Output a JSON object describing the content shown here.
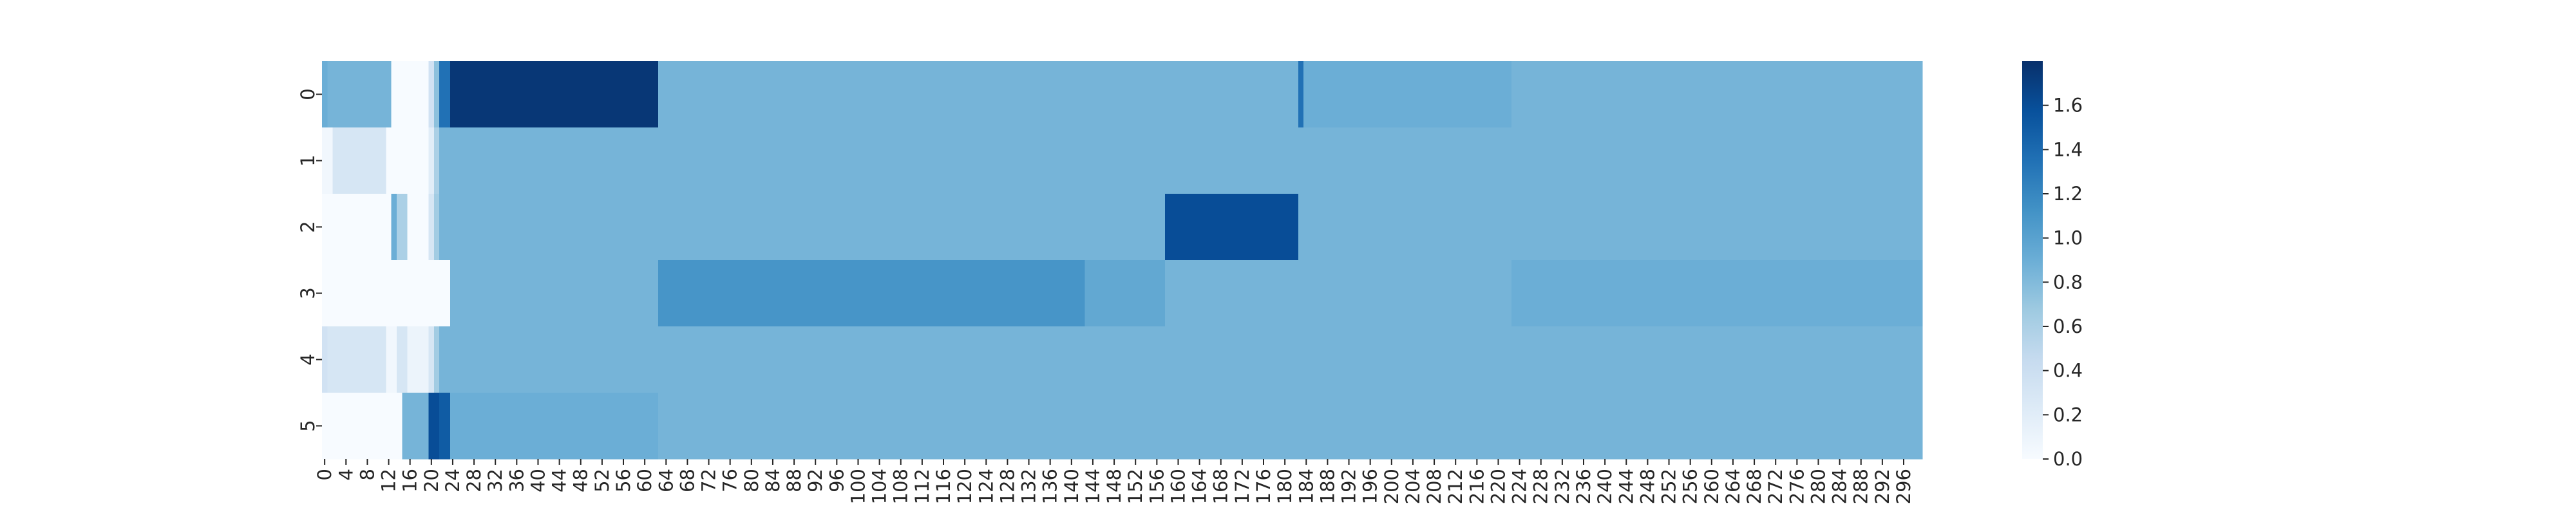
{
  "chart_data": {
    "type": "heatmap",
    "title": "",
    "xlabel": "",
    "ylabel": "",
    "colormap": "Blues",
    "vmin": 0.0,
    "vmax": 1.8,
    "rows": [
      "0",
      "1",
      "2",
      "3",
      "4",
      "5"
    ],
    "n_columns": 300,
    "x_tick_labels": [
      "0",
      "4",
      "8",
      "12",
      "16",
      "20",
      "24",
      "28",
      "32",
      "36",
      "40",
      "44",
      "48",
      "52",
      "56",
      "60",
      "64",
      "68",
      "72",
      "76",
      "80",
      "84",
      "88",
      "92",
      "96",
      "100",
      "104",
      "108",
      "112",
      "116",
      "120",
      "124",
      "128",
      "132",
      "136",
      "140",
      "144",
      "148",
      "152",
      "156",
      "160",
      "164",
      "168",
      "172",
      "176",
      "180",
      "184",
      "188",
      "192",
      "196",
      "200",
      "204",
      "208",
      "212",
      "216",
      "220",
      "224",
      "228",
      "232",
      "236",
      "240",
      "244",
      "248",
      "252",
      "256",
      "260",
      "264",
      "268",
      "272",
      "276",
      "280",
      "284",
      "288",
      "292",
      "296"
    ],
    "colorbar_ticks": [
      "0.0",
      "0.2",
      "0.4",
      "0.6",
      "0.8",
      "1.0",
      "1.2",
      "1.4",
      "1.6"
    ],
    "colorbar_tick_values": [
      0.0,
      0.2,
      0.4,
      0.6,
      0.8,
      1.0,
      1.2,
      1.4,
      1.6
    ],
    "value_segments": [
      [
        [
          0,
          1,
          0.9
        ],
        [
          1,
          13,
          0.85
        ],
        [
          13,
          20,
          0.0
        ],
        [
          20,
          21,
          0.35
        ],
        [
          21,
          22,
          0.75
        ],
        [
          22,
          24,
          1.35
        ],
        [
          24,
          63,
          1.75
        ],
        [
          63,
          183,
          0.85
        ],
        [
          183,
          184,
          1.35
        ],
        [
          184,
          223,
          0.9
        ],
        [
          223,
          300,
          0.85
        ]
      ],
      [
        [
          0,
          2,
          0.05
        ],
        [
          2,
          12,
          0.3
        ],
        [
          12,
          20,
          0.0
        ],
        [
          20,
          21,
          0.2
        ],
        [
          21,
          22,
          0.6
        ],
        [
          22,
          300,
          0.85
        ]
      ],
      [
        [
          0,
          13,
          0.0
        ],
        [
          13,
          14,
          0.9
        ],
        [
          14,
          16,
          0.6
        ],
        [
          16,
          20,
          0.0
        ],
        [
          20,
          21,
          0.3
        ],
        [
          21,
          22,
          0.65
        ],
        [
          22,
          158,
          0.85
        ],
        [
          158,
          183,
          1.6
        ],
        [
          183,
          300,
          0.85
        ]
      ],
      [
        [
          0,
          24,
          0.0
        ],
        [
          24,
          63,
          0.85
        ],
        [
          63,
          143,
          1.1
        ],
        [
          143,
          158,
          0.95
        ],
        [
          158,
          223,
          0.85
        ],
        [
          223,
          300,
          0.9
        ]
      ],
      [
        [
          0,
          1,
          0.35
        ],
        [
          1,
          12,
          0.3
        ],
        [
          12,
          14,
          0.05
        ],
        [
          14,
          16,
          0.3
        ],
        [
          16,
          20,
          0.1
        ],
        [
          20,
          21,
          0.3
        ],
        [
          21,
          22,
          0.65
        ],
        [
          22,
          300,
          0.85
        ]
      ],
      [
        [
          0,
          12,
          0.0
        ],
        [
          12,
          15,
          0.0
        ],
        [
          15,
          20,
          0.85
        ],
        [
          20,
          22,
          1.6
        ],
        [
          22,
          24,
          1.5
        ],
        [
          24,
          63,
          0.9
        ],
        [
          63,
          300,
          0.85
        ]
      ]
    ]
  }
}
